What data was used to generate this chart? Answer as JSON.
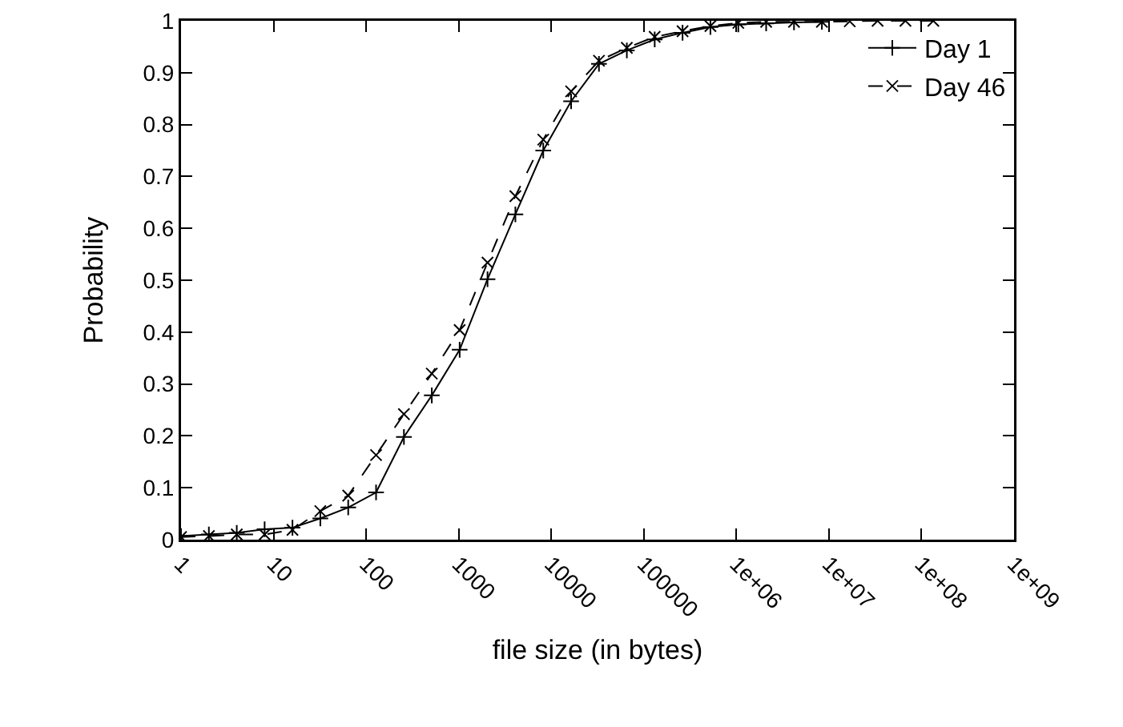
{
  "chart_data": {
    "type": "line",
    "xlabel": "file size (in bytes)",
    "ylabel": "Probability",
    "log": "x",
    "xlim": [
      1,
      1000000000
    ],
    "ylim": [
      0,
      1
    ],
    "xticks": [
      1,
      10,
      100,
      1000,
      10000,
      100000,
      {
        "value": 1000000,
        "label": "1e+06"
      },
      {
        "value": 10000000,
        "label": "1e+07"
      },
      {
        "value": 100000000,
        "label": "1e+08"
      },
      {
        "value": 1000000000,
        "label": "1e+09"
      }
    ],
    "yticks": [
      0,
      0.1,
      0.2,
      0.3,
      0.4,
      0.5,
      0.6,
      0.7,
      0.8,
      0.9,
      1
    ],
    "grid": false,
    "legend": "top right",
    "series": [
      {
        "name": "Day 1",
        "color": "#000000",
        "line_style": "solid",
        "marker": "cross",
        "x": [
          1,
          2,
          4,
          8,
          16,
          32,
          64,
          128,
          256,
          512,
          1024,
          2048,
          4096,
          8192,
          16384,
          32768,
          65536,
          131072,
          262144,
          524288,
          1048576,
          2097152,
          4194304,
          8388608
        ],
        "values": [
          0.007,
          0.01,
          0.013,
          0.02,
          0.023,
          0.041,
          0.062,
          0.091,
          0.198,
          0.278,
          0.366,
          0.502,
          0.627,
          0.75,
          0.845,
          0.917,
          0.943,
          0.964,
          0.977,
          0.988,
          0.993,
          0.995,
          0.997,
          0.998
        ]
      },
      {
        "name": "Day 46",
        "color": "#000000",
        "line_style": "dashed",
        "marker": "x",
        "x": [
          1,
          2,
          4,
          8,
          16,
          32,
          64,
          128,
          256,
          512,
          1024,
          2048,
          4096,
          8192,
          16384,
          32768,
          65536,
          131072,
          262144,
          524288,
          1048576,
          2097152,
          4194304,
          8388608,
          16777216,
          33554432,
          67108864,
          134217728
        ],
        "values": [
          0.005,
          0.007,
          0.01,
          0.01,
          0.019,
          0.055,
          0.085,
          0.163,
          0.242,
          0.32,
          0.404,
          0.534,
          0.662,
          0.771,
          0.864,
          0.923,
          0.948,
          0.969,
          0.98,
          0.99,
          0.996,
          0.998,
          0.998,
          0.998,
          0.999,
          1,
          1,
          1
        ]
      }
    ]
  }
}
